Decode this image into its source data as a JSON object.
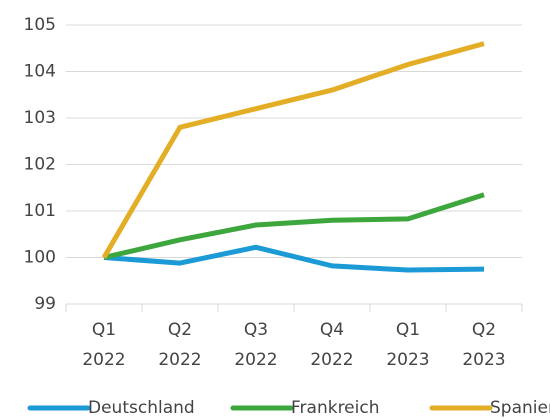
{
  "chart_data": {
    "type": "line",
    "categories": [
      [
        "Q1",
        "2022"
      ],
      [
        "Q2",
        "2022"
      ],
      [
        "Q3",
        "2022"
      ],
      [
        "Q4",
        "2022"
      ],
      [
        "Q1",
        "2023"
      ],
      [
        "Q2",
        "2023"
      ]
    ],
    "series": [
      {
        "name": "Deutschland",
        "color": "#1b9ad6",
        "values": [
          100,
          99.88,
          100.22,
          99.82,
          99.73,
          99.75
        ]
      },
      {
        "name": "Frankreich",
        "color": "#3da63d",
        "values": [
          100,
          100.38,
          100.7,
          100.8,
          100.83,
          101.35
        ]
      },
      {
        "name": "Spanien",
        "color": "#e3ae26",
        "values": [
          100,
          102.8,
          103.2,
          103.6,
          104.15,
          104.6
        ]
      }
    ],
    "ylim": [
      99,
      105
    ],
    "yticks": [
      99,
      100,
      101,
      102,
      103,
      104,
      105
    ],
    "grid": true,
    "legend": "bottom"
  }
}
